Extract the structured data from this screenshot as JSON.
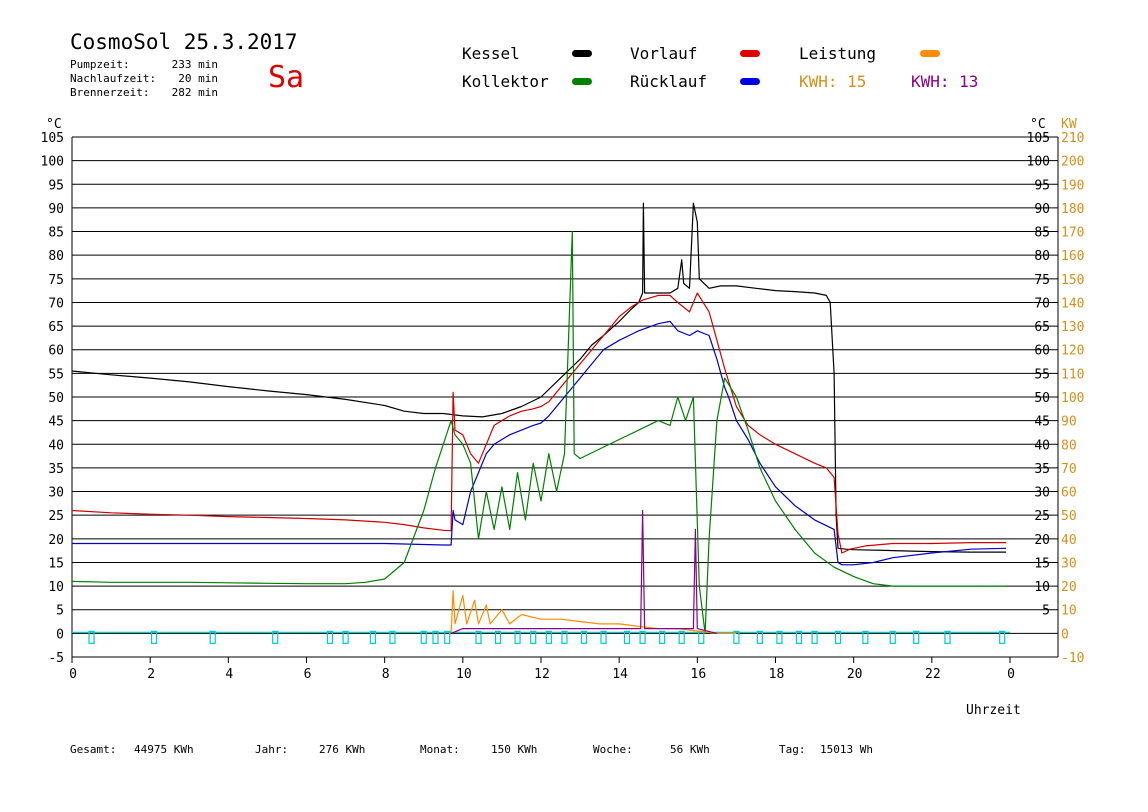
{
  "header": {
    "title": "CosmoSol 25.3.2017",
    "day": "Sa",
    "stats": [
      {
        "label": "Pumpzeit:",
        "value": "233 min"
      },
      {
        "label": "Nachlaufzeit:",
        "value": "20 min"
      },
      {
        "label": "Brennerzeit:",
        "value": "282 min"
      }
    ]
  },
  "legend": {
    "kessel": "Kessel",
    "kollektor": "Kollektor",
    "vorlauf": "Vorlauf",
    "ruecklauf": "Rücklauf",
    "leistung": "Leistung",
    "kwh1_label": "KWH:",
    "kwh1_value": "15",
    "kwh2_label": "KWH:",
    "kwh2_value": "13"
  },
  "colors": {
    "kessel": "#000000",
    "kollektor": "#008000",
    "vorlauf": "#d00000",
    "ruecklauf": "#0000c8",
    "leistung": "#ff8c00",
    "kwh2": "#8a008a",
    "pump": "#00cccc",
    "axis_kw": "#d4901a"
  },
  "footer": [
    {
      "label": "Gesamt:",
      "value": "44975 KWh"
    },
    {
      "label": "Jahr:",
      "value": "276 KWh"
    },
    {
      "label": "Monat:",
      "value": "150 KWh"
    },
    {
      "label": "Woche:",
      "value": "56 KWh"
    },
    {
      "label": "Tag:",
      "value": "15013 Wh"
    }
  ],
  "chart_data": {
    "type": "line",
    "xlabel": "Uhrzeit",
    "ylabel_left": "°C",
    "ylabel_right": "°C",
    "ylabel_kw": "KW",
    "xlim": [
      0,
      24
    ],
    "ylim": [
      -5,
      105
    ],
    "grid": true,
    "x_ticks": [
      "0",
      "2",
      "4",
      "6",
      "8",
      "10",
      "12",
      "14",
      "16",
      "18",
      "20",
      "22",
      "0"
    ],
    "y_ticks": [
      -5,
      0,
      5,
      10,
      15,
      20,
      25,
      30,
      35,
      40,
      45,
      50,
      55,
      60,
      65,
      70,
      75,
      80,
      85,
      90,
      95,
      100,
      105
    ],
    "kw_ticks": [
      -10,
      0,
      10,
      20,
      30,
      40,
      50,
      60,
      70,
      80,
      90,
      100,
      110,
      120,
      130,
      140,
      150,
      160,
      170,
      180,
      190,
      200,
      210
    ],
    "series": [
      {
        "name": "Kessel",
        "color": "#000000",
        "points": [
          [
            0,
            55.5
          ],
          [
            1,
            54.7
          ],
          [
            2,
            54
          ],
          [
            3,
            53.2
          ],
          [
            4,
            52.2
          ],
          [
            5,
            51.3
          ],
          [
            6,
            50.5
          ],
          [
            7,
            49.5
          ],
          [
            8,
            48.2
          ],
          [
            8.5,
            47
          ],
          [
            9,
            46.5
          ],
          [
            9.5,
            46.5
          ],
          [
            10,
            46
          ],
          [
            10.5,
            45.8
          ],
          [
            11,
            46.5
          ],
          [
            11.5,
            48
          ],
          [
            12,
            50
          ],
          [
            12.5,
            54
          ],
          [
            13,
            58
          ],
          [
            13.3,
            61
          ],
          [
            13.6,
            63
          ],
          [
            14,
            66
          ],
          [
            14.3,
            68.5
          ],
          [
            14.5,
            70
          ],
          [
            14.6,
            72
          ],
          [
            14.62,
            91
          ],
          [
            14.65,
            72
          ],
          [
            15,
            72
          ],
          [
            15.3,
            72
          ],
          [
            15.5,
            73
          ],
          [
            15.6,
            79
          ],
          [
            15.65,
            74
          ],
          [
            15.8,
            73
          ],
          [
            15.9,
            91
          ],
          [
            16,
            87
          ],
          [
            16.05,
            75
          ],
          [
            16.3,
            73
          ],
          [
            16.6,
            73.5
          ],
          [
            17,
            73.5
          ],
          [
            17.5,
            73
          ],
          [
            18,
            72.5
          ],
          [
            18.5,
            72.3
          ],
          [
            19,
            72
          ],
          [
            19.3,
            71.5
          ],
          [
            19.4,
            70
          ],
          [
            19.5,
            55
          ],
          [
            19.55,
            25
          ],
          [
            19.6,
            18
          ],
          [
            19.8,
            17.8
          ],
          [
            20,
            17.7
          ],
          [
            21,
            17.5
          ],
          [
            22,
            17.3
          ],
          [
            23,
            17.2
          ],
          [
            23.9,
            17.2
          ]
        ]
      },
      {
        "name": "Vorlauf",
        "color": "#d00000",
        "points": [
          [
            0,
            26
          ],
          [
            1,
            25.5
          ],
          [
            2,
            25.2
          ],
          [
            3,
            25
          ],
          [
            4,
            24.7
          ],
          [
            5,
            24.5
          ],
          [
            6,
            24.3
          ],
          [
            7,
            24
          ],
          [
            8,
            23.5
          ],
          [
            8.5,
            23
          ],
          [
            9,
            22.3
          ],
          [
            9.5,
            21.8
          ],
          [
            9.7,
            21.7
          ],
          [
            9.75,
            51
          ],
          [
            9.8,
            43
          ],
          [
            10,
            42
          ],
          [
            10.2,
            38
          ],
          [
            10.4,
            36
          ],
          [
            10.6,
            40
          ],
          [
            10.8,
            44
          ],
          [
            11,
            45
          ],
          [
            11.2,
            46
          ],
          [
            11.5,
            47
          ],
          [
            11.8,
            47.5
          ],
          [
            12,
            48
          ],
          [
            12.2,
            49
          ],
          [
            12.5,
            52
          ],
          [
            12.8,
            55
          ],
          [
            13,
            57
          ],
          [
            13.2,
            59
          ],
          [
            13.5,
            62
          ],
          [
            13.8,
            65
          ],
          [
            14,
            67
          ],
          [
            14.3,
            69
          ],
          [
            14.6,
            70.5
          ],
          [
            15,
            71.5
          ],
          [
            15.3,
            71.5
          ],
          [
            15.5,
            70
          ],
          [
            15.8,
            68
          ],
          [
            16,
            72
          ],
          [
            16.3,
            68
          ],
          [
            16.5,
            62
          ],
          [
            16.7,
            56
          ],
          [
            17,
            48
          ],
          [
            17.3,
            44
          ],
          [
            17.6,
            42
          ],
          [
            18,
            40
          ],
          [
            18.5,
            38
          ],
          [
            19,
            36
          ],
          [
            19.3,
            35
          ],
          [
            19.4,
            34
          ],
          [
            19.5,
            33
          ],
          [
            19.6,
            21
          ],
          [
            19.7,
            17
          ],
          [
            19.9,
            17.8
          ],
          [
            20.3,
            18.5
          ],
          [
            21,
            19
          ],
          [
            22,
            19
          ],
          [
            23,
            19.2
          ],
          [
            23.9,
            19.2
          ]
        ]
      },
      {
        "name": "Rücklauf",
        "color": "#0000c8",
        "points": [
          [
            0,
            19
          ],
          [
            1,
            19
          ],
          [
            2,
            19
          ],
          [
            3,
            19
          ],
          [
            4,
            19
          ],
          [
            5,
            19
          ],
          [
            6,
            19
          ],
          [
            7,
            19
          ],
          [
            8,
            19
          ],
          [
            9,
            18.8
          ],
          [
            9.5,
            18.7
          ],
          [
            9.7,
            18.7
          ],
          [
            9.75,
            26
          ],
          [
            9.8,
            24
          ],
          [
            10,
            23
          ],
          [
            10.2,
            30
          ],
          [
            10.4,
            34
          ],
          [
            10.6,
            38
          ],
          [
            10.8,
            40
          ],
          [
            11,
            41
          ],
          [
            11.2,
            42
          ],
          [
            11.5,
            43
          ],
          [
            11.8,
            44
          ],
          [
            12,
            44.5
          ],
          [
            12.2,
            46
          ],
          [
            12.5,
            49
          ],
          [
            12.8,
            52
          ],
          [
            13,
            54
          ],
          [
            13.3,
            57
          ],
          [
            13.6,
            60
          ],
          [
            14,
            62
          ],
          [
            14.5,
            64
          ],
          [
            15,
            65.5
          ],
          [
            15.3,
            66
          ],
          [
            15.5,
            64
          ],
          [
            15.8,
            63
          ],
          [
            16,
            64
          ],
          [
            16.3,
            63
          ],
          [
            16.5,
            58
          ],
          [
            16.7,
            52
          ],
          [
            16.8,
            50
          ],
          [
            17,
            45
          ],
          [
            17.3,
            41
          ],
          [
            17.6,
            36
          ],
          [
            18,
            31
          ],
          [
            18.5,
            27
          ],
          [
            19,
            24
          ],
          [
            19.5,
            22
          ],
          [
            19.6,
            15
          ],
          [
            19.7,
            14.5
          ],
          [
            20,
            14.5
          ],
          [
            20.5,
            15
          ],
          [
            21,
            16
          ],
          [
            22,
            17
          ],
          [
            23,
            17.8
          ],
          [
            23.9,
            18
          ]
        ]
      },
      {
        "name": "Kollektor",
        "color": "#008000",
        "points": [
          [
            0,
            11
          ],
          [
            1,
            10.8
          ],
          [
            2,
            10.8
          ],
          [
            3,
            10.8
          ],
          [
            4,
            10.7
          ],
          [
            5,
            10.6
          ],
          [
            6,
            10.5
          ],
          [
            7,
            10.5
          ],
          [
            7.5,
            10.8
          ],
          [
            8,
            11.5
          ],
          [
            8.5,
            15
          ],
          [
            9,
            26
          ],
          [
            9.3,
            35
          ],
          [
            9.5,
            40
          ],
          [
            9.7,
            45
          ],
          [
            9.8,
            42
          ],
          [
            10,
            40
          ],
          [
            10.2,
            36
          ],
          [
            10.4,
            20
          ],
          [
            10.6,
            30
          ],
          [
            10.8,
            22
          ],
          [
            11,
            31
          ],
          [
            11.2,
            22
          ],
          [
            11.4,
            34
          ],
          [
            11.6,
            24
          ],
          [
            11.8,
            36
          ],
          [
            12,
            28
          ],
          [
            12.2,
            38
          ],
          [
            12.4,
            30
          ],
          [
            12.6,
            38
          ],
          [
            12.8,
            85
          ],
          [
            12.85,
            38
          ],
          [
            13,
            37
          ],
          [
            13.5,
            39
          ],
          [
            14,
            41
          ],
          [
            14.5,
            43
          ],
          [
            15,
            45
          ],
          [
            15.3,
            44
          ],
          [
            15.5,
            50
          ],
          [
            15.7,
            45
          ],
          [
            15.9,
            50
          ],
          [
            16.05,
            10
          ],
          [
            16.2,
            0
          ],
          [
            16.3,
            20
          ],
          [
            16.5,
            45
          ],
          [
            16.7,
            54
          ],
          [
            17,
            50
          ],
          [
            17.3,
            43
          ],
          [
            17.6,
            35
          ],
          [
            18,
            28
          ],
          [
            18.5,
            22
          ],
          [
            19,
            17
          ],
          [
            19.5,
            14
          ],
          [
            20,
            12
          ],
          [
            20.5,
            10.5
          ],
          [
            21,
            10
          ],
          [
            22,
            10
          ],
          [
            23,
            10
          ],
          [
            23.9,
            10
          ]
        ]
      },
      {
        "name": "Leistung",
        "color": "#ff8c00",
        "points": [
          [
            9.7,
            0
          ],
          [
            9.75,
            9
          ],
          [
            9.8,
            2
          ],
          [
            10,
            8
          ],
          [
            10.1,
            2
          ],
          [
            10.3,
            7
          ],
          [
            10.4,
            2
          ],
          [
            10.6,
            6
          ],
          [
            10.7,
            2
          ],
          [
            11,
            5
          ],
          [
            11.2,
            2
          ],
          [
            11.5,
            4
          ],
          [
            12,
            3
          ],
          [
            12.5,
            3
          ],
          [
            13,
            2.5
          ],
          [
            13.5,
            2
          ],
          [
            14,
            2
          ],
          [
            14.5,
            1.5
          ],
          [
            15,
            1
          ],
          [
            15.5,
            1
          ],
          [
            16,
            0.5
          ],
          [
            16.5,
            0
          ],
          [
            17,
            0
          ]
        ]
      },
      {
        "name": "KWH 2",
        "color": "#8a008a",
        "points": [
          [
            9.7,
            0
          ],
          [
            10,
            1
          ],
          [
            11,
            1
          ],
          [
            12,
            1
          ],
          [
            13,
            1
          ],
          [
            14,
            1
          ],
          [
            14.55,
            1
          ],
          [
            14.6,
            26
          ],
          [
            14.65,
            1
          ],
          [
            15,
            1
          ],
          [
            15.5,
            1
          ],
          [
            15.9,
            1
          ],
          [
            15.95,
            22
          ],
          [
            16,
            1
          ],
          [
            16.5,
            0
          ]
        ]
      }
    ],
    "pump_marks": [
      0.5,
      2.1,
      3.6,
      5.2,
      6.6,
      7,
      7.7,
      8.2,
      9.0,
      9.3,
      9.6,
      10.4,
      10.9,
      11.4,
      11.8,
      12.2,
      12.6,
      13.1,
      13.6,
      14.2,
      14.6,
      15.1,
      15.6,
      16.1,
      17,
      17.6,
      18.1,
      18.6,
      19,
      19.6,
      20.3,
      21,
      21.6,
      22.4,
      23.8
    ]
  }
}
